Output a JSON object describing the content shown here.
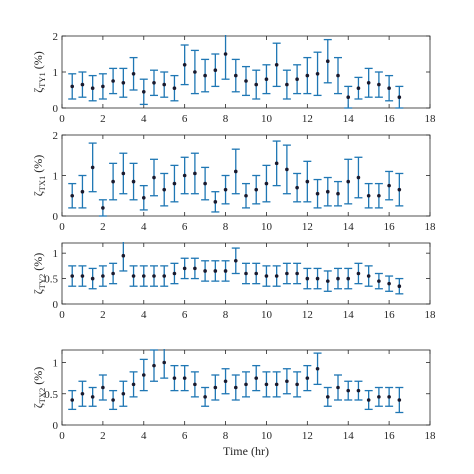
{
  "chart_data": [
    {
      "type": "errorbar",
      "ylabel": {
        "symbol": "ζ",
        "subscript": "TY1",
        "unit": "(%)"
      },
      "xlabel": "",
      "xlim": [
        0,
        18
      ],
      "ylim": [
        0,
        2
      ],
      "xticks": [
        0,
        2,
        4,
        6,
        8,
        10,
        12,
        14,
        16,
        18
      ],
      "yticks": [
        0,
        1,
        2
      ],
      "color": "#1f77b4",
      "series": [
        {
          "x": [
            0.5,
            1.0,
            1.5,
            2.0,
            2.5,
            3.0,
            3.5,
            4.0,
            4.5,
            5.0,
            5.5,
            6.0,
            6.5,
            7.0,
            7.5,
            8.0,
            8.5,
            9.0,
            9.5,
            10.0,
            10.5,
            11.0,
            11.5,
            12.0,
            12.5,
            13.0,
            13.5,
            14.0,
            14.5,
            15.0,
            15.5,
            16.0,
            16.5
          ],
          "y": [
            0.6,
            0.65,
            0.55,
            0.6,
            0.75,
            0.7,
            0.95,
            0.45,
            0.7,
            0.65,
            0.55,
            1.2,
            1.0,
            0.9,
            1.05,
            1.5,
            0.9,
            0.75,
            0.65,
            0.8,
            1.2,
            0.65,
            0.8,
            0.9,
            0.95,
            1.3,
            0.9,
            0.3,
            0.55,
            0.7,
            0.65,
            0.55,
            0.3
          ],
          "err": [
            0.35,
            0.35,
            0.35,
            0.35,
            0.35,
            0.4,
            0.45,
            0.35,
            0.35,
            0.35,
            0.35,
            0.55,
            0.6,
            0.45,
            0.45,
            0.7,
            0.45,
            0.4,
            0.4,
            0.4,
            0.6,
            0.4,
            0.4,
            0.5,
            0.6,
            0.6,
            0.5,
            0.3,
            0.3,
            0.4,
            0.35,
            0.35,
            0.3
          ]
        }
      ]
    },
    {
      "type": "errorbar",
      "ylabel": {
        "symbol": "ζ",
        "subscript": "TX1",
        "unit": "(%)"
      },
      "xlabel": "",
      "xlim": [
        0,
        18
      ],
      "ylim": [
        0,
        2
      ],
      "xticks": [
        0,
        2,
        4,
        6,
        8,
        10,
        12,
        14,
        16,
        18
      ],
      "yticks": [
        0,
        1,
        2
      ],
      "color": "#1f77b4",
      "series": [
        {
          "x": [
            0.5,
            1.0,
            1.5,
            2.0,
            2.5,
            3.0,
            3.5,
            4.0,
            4.5,
            5.0,
            5.5,
            6.0,
            6.5,
            7.0,
            7.5,
            8.0,
            8.5,
            9.0,
            9.5,
            10.0,
            10.5,
            11.0,
            11.5,
            12.0,
            12.5,
            13.0,
            13.5,
            14.0,
            14.5,
            15.0,
            15.5,
            16.0,
            16.5
          ],
          "y": [
            0.5,
            0.6,
            1.2,
            0.2,
            0.85,
            1.05,
            0.85,
            0.45,
            0.95,
            0.65,
            0.8,
            1.0,
            1.05,
            0.8,
            0.35,
            0.65,
            1.1,
            0.5,
            0.65,
            0.8,
            1.3,
            1.15,
            0.7,
            0.85,
            0.55,
            0.6,
            0.55,
            0.85,
            0.95,
            0.5,
            0.5,
            0.75,
            0.65
          ],
          "err": [
            0.3,
            0.4,
            0.6,
            0.2,
            0.45,
            0.5,
            0.45,
            0.3,
            0.45,
            0.4,
            0.45,
            0.45,
            0.5,
            0.4,
            0.25,
            0.35,
            0.55,
            0.3,
            0.35,
            0.45,
            0.55,
            0.6,
            0.35,
            0.5,
            0.35,
            0.35,
            0.3,
            0.55,
            0.5,
            0.3,
            0.3,
            0.35,
            0.4
          ]
        }
      ]
    },
    {
      "type": "errorbar",
      "ylabel": {
        "symbol": "ζ",
        "subscript": "TY2",
        "unit": "(%)"
      },
      "xlabel": "",
      "xlim": [
        0,
        18
      ],
      "ylim": [
        0,
        1.2
      ],
      "xticks": [
        0,
        2,
        4,
        6,
        8,
        10,
        12,
        14,
        16,
        18
      ],
      "yticks": [
        0,
        0.5,
        1
      ],
      "color": "#1f77b4",
      "series": [
        {
          "x": [
            0.5,
            1.0,
            1.5,
            2.0,
            2.5,
            3.0,
            3.5,
            4.0,
            4.5,
            5.0,
            5.5,
            6.0,
            6.5,
            7.0,
            7.5,
            8.0,
            8.5,
            9.0,
            9.5,
            10.0,
            10.5,
            11.0,
            11.5,
            12.0,
            12.5,
            13.0,
            13.5,
            14.0,
            14.5,
            15.0,
            15.5,
            16.0,
            16.5
          ],
          "y": [
            0.55,
            0.55,
            0.5,
            0.55,
            0.6,
            0.95,
            0.55,
            0.55,
            0.55,
            0.55,
            0.6,
            0.7,
            0.7,
            0.65,
            0.65,
            0.65,
            0.85,
            0.6,
            0.6,
            0.55,
            0.55,
            0.6,
            0.6,
            0.5,
            0.5,
            0.45,
            0.5,
            0.5,
            0.6,
            0.55,
            0.45,
            0.4,
            0.35
          ],
          "err": [
            0.2,
            0.2,
            0.2,
            0.2,
            0.2,
            0.3,
            0.2,
            0.2,
            0.2,
            0.2,
            0.2,
            0.2,
            0.2,
            0.2,
            0.2,
            0.2,
            0.25,
            0.2,
            0.2,
            0.2,
            0.2,
            0.2,
            0.2,
            0.2,
            0.2,
            0.2,
            0.2,
            0.2,
            0.2,
            0.2,
            0.15,
            0.15,
            0.15
          ]
        }
      ]
    },
    {
      "type": "errorbar",
      "ylabel": {
        "symbol": "ζ",
        "subscript": "TX2",
        "unit": "(%)"
      },
      "xlabel": "Time (hr)",
      "xlim": [
        0,
        18
      ],
      "ylim": [
        0,
        1.2
      ],
      "xticks": [
        0,
        2,
        4,
        6,
        8,
        10,
        12,
        14,
        16,
        18
      ],
      "yticks": [
        0,
        0.5,
        1
      ],
      "color": "#1f77b4",
      "series": [
        {
          "x": [
            0.5,
            1.0,
            1.5,
            2.0,
            2.5,
            3.0,
            3.5,
            4.0,
            4.5,
            5.0,
            5.5,
            6.0,
            6.5,
            7.0,
            7.5,
            8.0,
            8.5,
            9.0,
            9.5,
            10.0,
            10.5,
            11.0,
            11.5,
            12.0,
            12.5,
            13.0,
            13.5,
            14.0,
            14.5,
            15.0,
            15.5,
            16.0,
            16.5
          ],
          "y": [
            0.4,
            0.5,
            0.45,
            0.6,
            0.4,
            0.5,
            0.65,
            0.8,
            0.95,
            1.0,
            0.75,
            0.75,
            0.65,
            0.45,
            0.6,
            0.7,
            0.6,
            0.65,
            0.75,
            0.65,
            0.65,
            0.7,
            0.65,
            0.75,
            0.9,
            0.45,
            0.6,
            0.55,
            0.55,
            0.4,
            0.45,
            0.45,
            0.4
          ],
          "err": [
            0.15,
            0.2,
            0.15,
            0.2,
            0.15,
            0.2,
            0.2,
            0.25,
            0.25,
            0.25,
            0.2,
            0.2,
            0.2,
            0.15,
            0.2,
            0.2,
            0.2,
            0.2,
            0.2,
            0.2,
            0.2,
            0.2,
            0.2,
            0.2,
            0.25,
            0.15,
            0.2,
            0.15,
            0.15,
            0.15,
            0.15,
            0.15,
            0.2
          ]
        }
      ]
    }
  ]
}
